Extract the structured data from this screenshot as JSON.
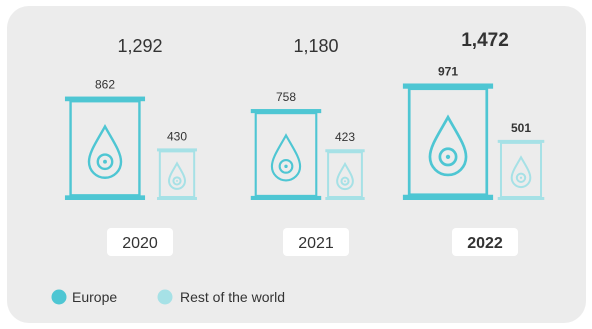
{
  "chart_data": {
    "type": "bar",
    "categories": [
      "2020",
      "2021",
      "2022"
    ],
    "totals": [
      "1,292",
      "1,180",
      "1,472"
    ],
    "series": [
      {
        "name": "Europe",
        "values": [
          862,
          758,
          971
        ],
        "labels": [
          "862",
          "758",
          "971"
        ]
      },
      {
        "name": "Rest of the world",
        "values": [
          430,
          423,
          501
        ],
        "labels": [
          "430",
          "423",
          "501"
        ]
      }
    ],
    "highlight_category": "2022",
    "legend_position": "bottom-left",
    "colors": {
      "europe": "#4ec6d3",
      "rest_of_world": "#a6e1e6"
    }
  }
}
